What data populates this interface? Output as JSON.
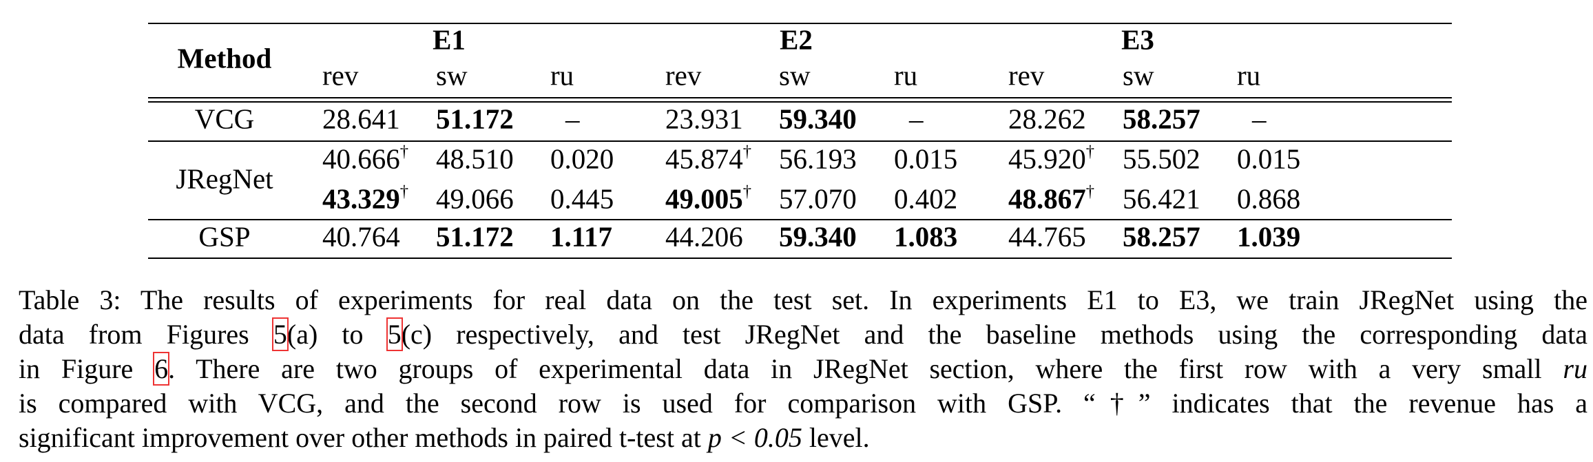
{
  "table": {
    "method_header": "Method",
    "groups": [
      {
        "name": "E1",
        "columns": [
          "rev",
          "sw",
          "ru"
        ]
      },
      {
        "name": "E2",
        "columns": [
          "rev",
          "sw",
          "ru"
        ]
      },
      {
        "name": "E3",
        "columns": [
          "rev",
          "sw",
          "ru"
        ]
      }
    ],
    "rows": [
      {
        "method": "VCG",
        "lines": [
          [
            {
              "text": "28.641"
            },
            {
              "text": "51.172",
              "bold": true
            },
            {
              "text": "–"
            },
            {
              "text": "23.931"
            },
            {
              "text": "59.340",
              "bold": true
            },
            {
              "text": "–"
            },
            {
              "text": "28.262"
            },
            {
              "text": "58.257",
              "bold": true
            },
            {
              "text": "–"
            }
          ]
        ]
      },
      {
        "method": "JRegNet",
        "lines": [
          [
            {
              "text": "40.666",
              "sup": "†"
            },
            {
              "text": "48.510"
            },
            {
              "text": "0.020"
            },
            {
              "text": "45.874",
              "sup": "†"
            },
            {
              "text": "56.193"
            },
            {
              "text": "0.015"
            },
            {
              "text": "45.920",
              "sup": "†"
            },
            {
              "text": "55.502"
            },
            {
              "text": "0.015"
            }
          ],
          [
            {
              "text": "43.329",
              "sup": "†",
              "bold": true
            },
            {
              "text": "49.066"
            },
            {
              "text": "0.445"
            },
            {
              "text": "49.005",
              "sup": "†",
              "bold": true
            },
            {
              "text": "57.070"
            },
            {
              "text": "0.402"
            },
            {
              "text": "48.867",
              "sup": "†",
              "bold": true
            },
            {
              "text": "56.421"
            },
            {
              "text": "0.868"
            }
          ]
        ]
      },
      {
        "method": "GSP",
        "lines": [
          [
            {
              "text": "40.764"
            },
            {
              "text": "51.172",
              "bold": true
            },
            {
              "text": "1.117",
              "bold": true
            },
            {
              "text": "44.206"
            },
            {
              "text": "59.340",
              "bold": true
            },
            {
              "text": "1.083",
              "bold": true
            },
            {
              "text": "44.765"
            },
            {
              "text": "58.257",
              "bold": true
            },
            {
              "text": "1.039",
              "bold": true
            }
          ]
        ]
      }
    ]
  },
  "caption": {
    "lines": [
      [
        {
          "t": "Table 3: The results of experiments for real data on the test set. In experiments E1 to E3, we train JRegNet using the"
        }
      ],
      [
        {
          "t": "data from Figures "
        },
        {
          "t": "5",
          "kind": "ref"
        },
        {
          "t": "(a) to "
        },
        {
          "t": "5",
          "kind": "ref"
        },
        {
          "t": "(c) respectively, and test JRegNet and the baseline methods using the corresponding data"
        }
      ],
      [
        {
          "t": "in Figure "
        },
        {
          "t": "6",
          "kind": "ref"
        },
        {
          "t": ". There are two groups of experimental data in JRegNet section, where the first row with a very small "
        },
        {
          "t": "ru",
          "kind": "math"
        }
      ],
      [
        {
          "t": "is compared with VCG, and the second row is used for comparison with GSP. “†” indicates that the revenue has a"
        }
      ],
      [
        {
          "t": "significant improvement over other methods in paired t-test at "
        },
        {
          "t": "p < 0.05",
          "kind": "math"
        },
        {
          "t": " level."
        }
      ]
    ]
  }
}
